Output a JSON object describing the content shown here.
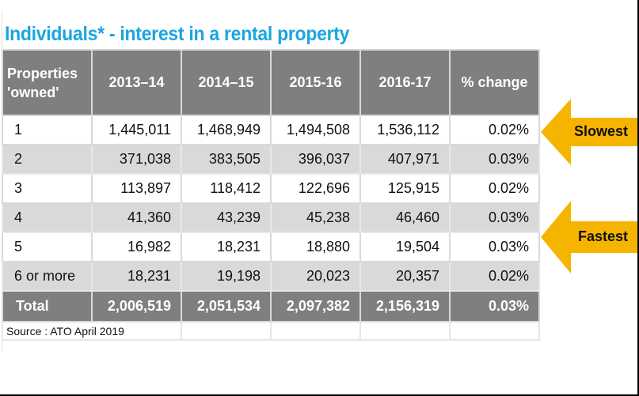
{
  "title": "Individuals* - interest in a rental property",
  "table": {
    "headers": [
      "Properties 'owned'",
      "2013–14",
      "2014–15",
      "2015-16",
      "2016-17",
      "% change"
    ],
    "header_first_lines": [
      "Properties",
      "'owned'"
    ],
    "rows": [
      [
        "1",
        "1,445,011",
        "1,468,949",
        "1,494,508",
        "1,536,112",
        "0.02%"
      ],
      [
        "2",
        "371,038",
        "383,505",
        "396,037",
        "407,971",
        "0.03%"
      ],
      [
        "3",
        "113,897",
        "118,412",
        "122,696",
        "125,915",
        "0.02%"
      ],
      [
        "4",
        "41,360",
        "43,239",
        "45,238",
        "46,460",
        "0.03%"
      ],
      [
        "5",
        "16,982",
        "18,231",
        "18,880",
        "19,504",
        "0.03%"
      ],
      [
        "6 or more",
        "18,231",
        "19,198",
        "20,023",
        "20,357",
        "0.02%"
      ]
    ],
    "total": [
      "Total",
      "2,006,519",
      "2,051,534",
      "2,097,382",
      "2,156,319",
      "0.03%"
    ],
    "source": "Source : ATO April 2019"
  },
  "callouts": [
    {
      "label": "Slowest",
      "icon": "arrow-left-icon",
      "color": "#f5b400"
    },
    {
      "label": "Fastest",
      "icon": "arrow-left-icon",
      "color": "#f5b400"
    }
  ],
  "colors": {
    "title": "#1aa6e0",
    "header_bg": "#7f7f7f",
    "alt_row": "#d9d9d9"
  }
}
